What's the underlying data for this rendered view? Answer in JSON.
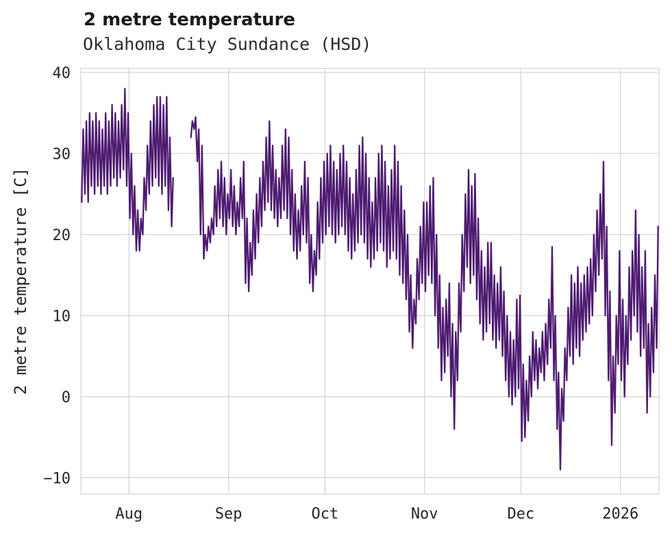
{
  "header": {
    "title": "2 metre temperature",
    "subtitle": "Oklahoma City Sundance (HSD)"
  },
  "chart_data": {
    "type": "line",
    "title": "2 metre temperature",
    "subtitle": "Oklahoma City Sundance (HSD)",
    "xlabel": "",
    "ylabel": "2 metre temperature [C]",
    "ylim": [
      -12,
      40.5
    ],
    "grid": true,
    "legend": "none",
    "line_color": "#4e1b71",
    "grid_color": "#d5d5d5",
    "yticks": [
      {
        "value": 40,
        "label": "40"
      },
      {
        "value": 30,
        "label": "30"
      },
      {
        "value": 20,
        "label": "20"
      },
      {
        "value": 10,
        "label": "10"
      },
      {
        "value": 0,
        "label": "0"
      },
      {
        "value": -10,
        "label": "−10"
      }
    ],
    "xticks": [
      {
        "day": 15,
        "label": "Aug"
      },
      {
        "day": 46,
        "label": "Sep"
      },
      {
        "day": 76,
        "label": "Oct"
      },
      {
        "day": 107,
        "label": "Nov"
      },
      {
        "day": 137,
        "label": "Dec"
      },
      {
        "day": 168,
        "label": "2026"
      }
    ],
    "x_axis_note": "day index; 0 = start of trace (mid-July 2025), ticks at month starts; values estimated from plot",
    "series": [
      {
        "name": "2 metre temperature [C]",
        "unit": "C",
        "sampling": "estimated daily [min,max] of the hourly trace; null = data gap",
        "daily_min_max": [
          [
            24,
            33
          ],
          [
            25,
            34
          ],
          [
            24,
            35
          ],
          [
            26,
            34
          ],
          [
            25,
            35
          ],
          [
            26,
            34
          ],
          [
            25,
            33
          ],
          [
            26,
            35
          ],
          [
            25,
            34
          ],
          [
            26,
            36
          ],
          [
            27,
            35
          ],
          [
            26,
            34
          ],
          [
            27,
            36
          ],
          [
            28,
            38
          ],
          [
            26,
            35
          ],
          [
            22,
            30
          ],
          [
            20,
            26
          ],
          [
            18,
            23
          ],
          [
            18,
            22
          ],
          [
            20,
            27
          ],
          [
            23,
            31
          ],
          [
            25,
            34
          ],
          [
            26,
            36
          ],
          [
            27,
            37
          ],
          [
            26,
            37
          ],
          [
            25,
            36
          ],
          [
            26,
            37
          ],
          [
            23,
            32
          ],
          [
            21,
            27
          ],
          null,
          null,
          null,
          null,
          null,
          [
            32,
            34
          ],
          [
            33,
            34.5
          ],
          [
            29,
            33
          ],
          [
            20,
            31
          ],
          [
            17,
            20
          ],
          [
            18,
            21
          ],
          [
            19,
            22
          ],
          [
            20,
            26
          ],
          [
            21,
            28
          ],
          [
            22,
            29
          ],
          [
            21,
            27
          ],
          [
            20,
            25
          ],
          [
            22,
            28
          ],
          [
            21,
            26
          ],
          [
            20,
            24
          ],
          [
            21,
            27
          ],
          [
            22,
            29
          ],
          [
            14,
            22
          ],
          [
            13,
            19
          ],
          [
            15,
            23
          ],
          [
            17,
            25
          ],
          [
            19,
            27
          ],
          [
            21,
            29
          ],
          [
            23,
            32
          ],
          [
            24,
            34
          ],
          [
            23,
            31
          ],
          [
            22,
            28
          ],
          [
            21,
            27
          ],
          [
            22,
            31
          ],
          [
            23,
            33
          ],
          [
            22,
            32
          ],
          [
            20,
            28
          ],
          [
            18,
            25
          ],
          [
            17,
            23
          ],
          [
            18,
            26
          ],
          [
            20,
            29
          ],
          [
            19,
            27
          ],
          [
            14,
            20
          ],
          [
            13,
            18
          ],
          [
            15,
            24
          ],
          [
            17,
            27
          ],
          [
            19,
            29
          ],
          [
            20,
            30
          ],
          [
            21,
            31
          ],
          [
            20,
            29
          ],
          [
            19,
            28
          ],
          [
            20,
            30
          ],
          [
            21,
            31
          ],
          [
            20,
            29
          ],
          [
            18,
            27
          ],
          [
            17,
            25
          ],
          [
            18,
            28
          ],
          [
            19,
            31
          ],
          [
            20,
            32
          ],
          [
            19,
            30
          ],
          [
            17,
            27
          ],
          [
            16,
            24
          ],
          [
            17,
            27
          ],
          [
            18,
            30
          ],
          [
            19,
            31
          ],
          [
            18,
            29
          ],
          [
            16,
            26
          ],
          [
            17,
            28
          ],
          [
            18,
            31
          ],
          [
            17,
            29
          ],
          [
            15,
            26
          ],
          [
            14,
            23
          ],
          [
            12,
            20
          ],
          [
            8,
            15
          ],
          [
            6,
            12
          ],
          [
            9,
            17
          ],
          [
            12,
            21
          ],
          [
            14,
            24
          ],
          [
            13,
            24
          ],
          [
            15,
            26
          ],
          [
            14,
            27
          ],
          [
            10,
            20
          ],
          [
            6,
            15
          ],
          [
            2,
            11
          ],
          [
            3,
            12
          ],
          [
            5,
            14
          ],
          [
            0,
            9
          ],
          [
            -4,
            8
          ],
          [
            2,
            14
          ],
          [
            8,
            20
          ],
          [
            13,
            25
          ],
          [
            16,
            28
          ],
          [
            14,
            26
          ],
          [
            15,
            27.5
          ],
          [
            12,
            22
          ],
          [
            9,
            18
          ],
          [
            7,
            16
          ],
          [
            8,
            19
          ],
          [
            9,
            19
          ],
          [
            7,
            15
          ],
          [
            6,
            14
          ],
          [
            7,
            16
          ],
          [
            5,
            13
          ],
          [
            2,
            10
          ],
          [
            0,
            8
          ],
          [
            -1,
            7
          ],
          [
            0,
            12
          ],
          [
            1,
            12.5
          ],
          [
            -5.5,
            4
          ],
          [
            -5,
            2
          ],
          [
            -3,
            5
          ],
          [
            0,
            8
          ],
          [
            2,
            7
          ],
          [
            1,
            6
          ],
          [
            3,
            8
          ],
          [
            2,
            9
          ],
          [
            4,
            12
          ],
          [
            6,
            18.5
          ],
          [
            2,
            10
          ],
          [
            -4,
            3
          ],
          [
            -9,
            1
          ],
          [
            -3,
            6
          ],
          [
            2,
            11
          ],
          [
            5,
            15
          ],
          [
            4,
            14
          ],
          [
            6,
            16
          ],
          [
            5,
            14
          ],
          [
            7,
            15
          ],
          [
            8,
            16
          ],
          [
            9,
            17
          ],
          [
            10,
            20
          ],
          [
            13,
            23
          ],
          [
            15,
            25
          ],
          [
            17,
            29
          ],
          [
            10,
            21
          ],
          [
            2,
            13
          ],
          [
            -6,
            5
          ],
          [
            -2,
            10
          ],
          [
            4,
            18
          ],
          [
            2,
            12
          ],
          [
            0,
            10
          ],
          [
            4,
            16
          ],
          [
            7,
            18
          ],
          [
            10,
            23
          ],
          [
            8,
            20
          ],
          [
            5,
            16
          ],
          [
            6,
            18
          ],
          [
            -2,
            9
          ],
          [
            0,
            11
          ],
          [
            3,
            15
          ],
          [
            6,
            21
          ]
        ]
      }
    ]
  }
}
